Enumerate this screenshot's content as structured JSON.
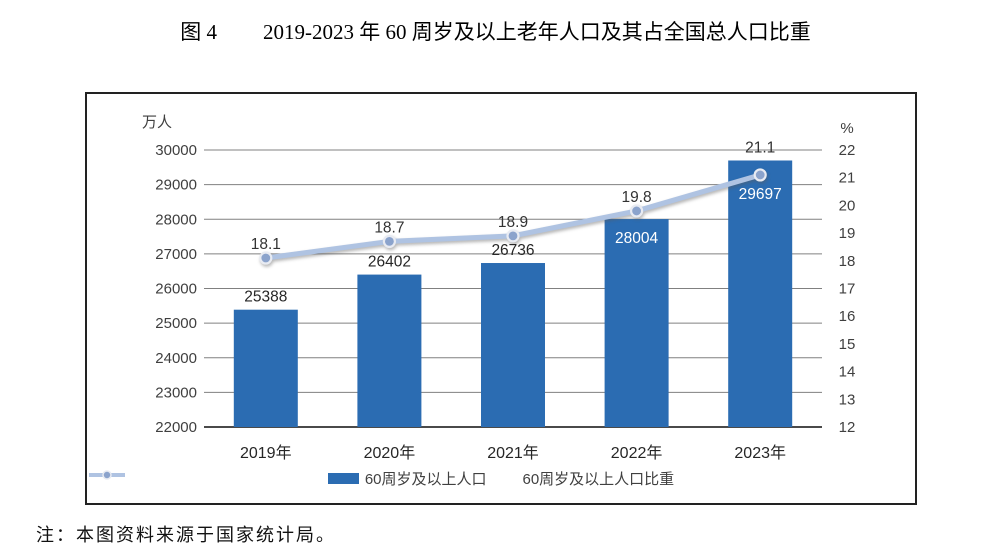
{
  "page": {
    "figure_label": "图 4",
    "title": "2019-2023 年 60 周岁及以上老年人口及其占全国总人口比重",
    "note": "注：本图资料来源于国家统计局。"
  },
  "chart_data": {
    "type": "combo_bar_line",
    "categories": [
      "2019年",
      "2020年",
      "2021年",
      "2022年",
      "2023年"
    ],
    "series": [
      {
        "name": "60周岁及以上人口",
        "type": "bar",
        "axis": "left",
        "values": [
          25388,
          26402,
          26736,
          28004,
          29697
        ],
        "data_labels": [
          "25388",
          "26402",
          "26736",
          "28004",
          "29697"
        ],
        "labels_inside": [
          false,
          false,
          false,
          true,
          true
        ],
        "color": "#2B6CB2"
      },
      {
        "name": "60周岁及以上人口比重",
        "type": "line",
        "axis": "right",
        "values": [
          18.1,
          18.7,
          18.9,
          19.8,
          21.1
        ],
        "data_labels": [
          "18.1",
          "18.7",
          "18.9",
          "19.8",
          "21.1"
        ],
        "color": "#AFC3E2",
        "marker_fill": "#8BA3CC",
        "marker_stroke": "#E8EBF2"
      }
    ],
    "left_axis": {
      "unit": "万人",
      "min": 22000,
      "max": 30000,
      "step": 1000,
      "tick_labels": [
        "30000",
        "29000",
        "28000",
        "27000",
        "26000",
        "25000",
        "24000",
        "23000",
        "22000"
      ]
    },
    "right_axis": {
      "unit": "%",
      "min": 12,
      "max": 22,
      "step": 1,
      "tick_labels": [
        "22",
        "21",
        "20",
        "19",
        "18",
        "17",
        "16",
        "15",
        "14",
        "13",
        "12"
      ]
    },
    "grid": true,
    "gridline_color": "#808080",
    "axis_line_color": "#4a4a4a",
    "tick_text_color": "#3f3f3f",
    "legend_position": "bottom"
  }
}
